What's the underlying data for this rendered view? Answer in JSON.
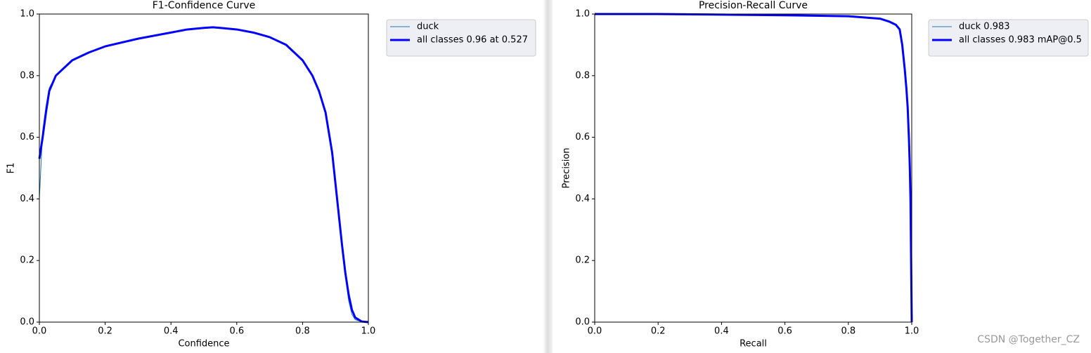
{
  "chart_data": [
    {
      "type": "line",
      "title": "F1-Confidence Curve",
      "xlabel": "Confidence",
      "ylabel": "F1",
      "x": [
        0,
        0.01,
        0.02,
        0.03,
        0.05,
        0.08,
        0.1,
        0.15,
        0.2,
        0.3,
        0.4,
        0.45,
        0.5,
        0.527,
        0.55,
        0.6,
        0.65,
        0.7,
        0.75,
        0.8,
        0.83,
        0.85,
        0.87,
        0.89,
        0.9,
        0.91,
        0.92,
        0.93,
        0.94,
        0.95,
        0.96,
        0.98,
        1.0
      ],
      "series": [
        {
          "name": "duck",
          "color": "#1f77b4",
          "linewidth": 1,
          "values": [
            0.4,
            0.62,
            0.7,
            0.76,
            0.8,
            0.83,
            0.85,
            0.875,
            0.895,
            0.92,
            0.94,
            0.95,
            0.955,
            0.957,
            0.955,
            0.95,
            0.94,
            0.925,
            0.9,
            0.85,
            0.8,
            0.75,
            0.68,
            0.55,
            0.45,
            0.35,
            0.25,
            0.15,
            0.07,
            0.025,
            0.008,
            0.001,
            0
          ]
        },
        {
          "name": "all classes 0.96 at 0.527",
          "color": "#0000ff",
          "linewidth": 3,
          "values": [
            0.53,
            0.6,
            0.68,
            0.75,
            0.8,
            0.83,
            0.85,
            0.875,
            0.895,
            0.92,
            0.94,
            0.95,
            0.955,
            0.957,
            0.955,
            0.95,
            0.94,
            0.925,
            0.9,
            0.85,
            0.8,
            0.75,
            0.68,
            0.55,
            0.45,
            0.35,
            0.25,
            0.16,
            0.09,
            0.04,
            0.015,
            0.002,
            0
          ]
        }
      ],
      "xlim": [
        0,
        1
      ],
      "ylim": [
        0,
        1
      ],
      "xticks": [
        {
          "value": 0,
          "label": "0.0"
        },
        0.2,
        0.4,
        0.6,
        0.8,
        {
          "value": 1,
          "label": "1.0"
        }
      ],
      "yticks": [
        {
          "value": 0,
          "label": "0.0"
        },
        0.2,
        0.4,
        0.6,
        0.8,
        {
          "value": 1,
          "label": "1.0"
        }
      ],
      "grid": false,
      "legend": "outside upper right"
    },
    {
      "type": "line",
      "title": "Precision-Recall Curve",
      "xlabel": "Recall",
      "ylabel": "Precision",
      "x": [
        0,
        0.2,
        0.4,
        0.6,
        0.8,
        0.9,
        0.93,
        0.95,
        0.962,
        0.97,
        0.978,
        0.983,
        0.987,
        0.991,
        0.994,
        0.996,
        0.998,
        1.0
      ],
      "series": [
        {
          "name": "duck 0.983",
          "color": "#1f77b4",
          "linewidth": 1,
          "values": [
            1,
            1,
            0.998,
            0.996,
            0.993,
            0.985,
            0.975,
            0.965,
            0.95,
            0.9,
            0.82,
            0.76,
            0.7,
            0.6,
            0.5,
            0.4,
            0.2,
            0
          ]
        },
        {
          "name": "all classes 0.983 mAP@0.5",
          "color": "#0000ff",
          "linewidth": 3,
          "values": [
            1,
            1,
            0.998,
            0.996,
            0.993,
            0.985,
            0.975,
            0.965,
            0.95,
            0.9,
            0.82,
            0.76,
            0.7,
            0.6,
            0.5,
            0.4,
            0.2,
            0
          ]
        }
      ],
      "xlim": [
        0,
        1
      ],
      "ylim": [
        0,
        1
      ],
      "xticks": [
        {
          "value": 0,
          "label": "0.0"
        },
        0.2,
        0.4,
        0.6,
        0.8,
        {
          "value": 1,
          "label": "1.0"
        }
      ],
      "yticks": [
        {
          "value": 0,
          "label": "0.0"
        },
        0.2,
        0.4,
        0.6,
        0.8,
        {
          "value": 1,
          "label": "1.0"
        }
      ],
      "grid": false,
      "legend": "outside upper right"
    }
  ],
  "watermark": "CSDN @Together_CZ"
}
